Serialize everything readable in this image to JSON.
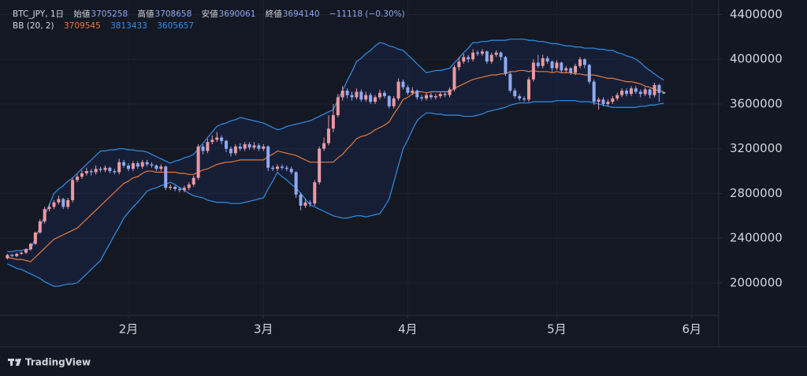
{
  "chart_data": {
    "type": "candlestick",
    "symbol_text": "BTC_JPY, 1日",
    "open_label": "始値",
    "high_label": "高値",
    "low_label": "安値",
    "close_label": "終値",
    "change_text": "−11118 (−0.30%)",
    "indicator": "BB (20, 2)",
    "footer": "TradingView",
    "up_color": "#eb9aa0",
    "down_color": "#8faaf2",
    "open": [
      2220000,
      2250000,
      2240000,
      2260000,
      2270000,
      2300000,
      2350000,
      2450000,
      2550000,
      2660000,
      2680000,
      2720000,
      2750000,
      2680000,
      2740000,
      2920000,
      2950000,
      2980000,
      3000000,
      2990000,
      3020000,
      3010000,
      3030000,
      3000000,
      2990000,
      3080000,
      3050000,
      3020000,
      3070000,
      3040000,
      3080000,
      3060000,
      3050000,
      3020000,
      3040000,
      2850000,
      2860000,
      2840000,
      2830000,
      2850000,
      2880000,
      2940000,
      3220000,
      3180000,
      3260000,
      3280000,
      3300000,
      3270000,
      3200000,
      3160000,
      3220000,
      3200000,
      3240000,
      3210000,
      3230000,
      3200000,
      3220000,
      3030000,
      3020000,
      3040000,
      3030000,
      3020000,
      2990000,
      2790000,
      2690000,
      2720000,
      2710000,
      2900000,
      3200000,
      3250000,
      3380000,
      3500000,
      3660000,
      3720000,
      3680000,
      3660000,
      3710000,
      3640000,
      3680000,
      3620000,
      3660000,
      3700000,
      3670000,
      3580000,
      3650000,
      3800000,
      3750000,
      3700000,
      3720000,
      3660000,
      3650000,
      3680000,
      3660000,
      3670000,
      3690000,
      3680000,
      3730000,
      3930000,
      3980000,
      4020000,
      4000000,
      4060000,
      4050000,
      4070000,
      3980000,
      4040000,
      4060000,
      4020000,
      3870000,
      3720000,
      3670000,
      3650000,
      3640000,
      3820000,
      3970000,
      3940000,
      4010000,
      3980000,
      3920000,
      3970000,
      3900000,
      3920000,
      3880000,
      3940000,
      4000000,
      3950000,
      3800000,
      3620000,
      3640000,
      3600000,
      3620000,
      3650000,
      3680000,
      3720000,
      3690000,
      3740000,
      3710000,
      3690000,
      3730000,
      3680000,
      3770000,
      3705258
    ],
    "high": [
      2260000,
      2260000,
      2270000,
      2280000,
      2310000,
      2360000,
      2460000,
      2570000,
      2680000,
      2710000,
      2740000,
      2780000,
      2760000,
      2760000,
      2940000,
      2970000,
      3010000,
      3030000,
      3020000,
      3050000,
      3040000,
      3050000,
      3040000,
      3020000,
      3110000,
      3100000,
      3070000,
      3090000,
      3090000,
      3100000,
      3100000,
      3080000,
      3060000,
      3060000,
      3050000,
      2880000,
      2870000,
      2860000,
      2870000,
      2900000,
      2960000,
      3240000,
      3240000,
      3290000,
      3320000,
      3350000,
      3320000,
      3280000,
      3220000,
      3240000,
      3250000,
      3260000,
      3260000,
      3260000,
      3250000,
      3240000,
      3230000,
      3050000,
      3060000,
      3060000,
      3050000,
      3040000,
      3000000,
      2810000,
      2750000,
      2740000,
      2920000,
      3220000,
      3300000,
      3500000,
      3600000,
      3690000,
      3760000,
      3740000,
      3710000,
      3740000,
      3730000,
      3710000,
      3700000,
      3680000,
      3730000,
      3720000,
      3680000,
      3670000,
      3830000,
      3820000,
      3770000,
      3750000,
      3730000,
      3680000,
      3700000,
      3700000,
      3690000,
      3710000,
      3710000,
      3750000,
      3950000,
      4020000,
      4050000,
      4040000,
      4090000,
      4080000,
      4090000,
      4080000,
      4060000,
      4080000,
      4070000,
      4030000,
      3890000,
      3740000,
      3690000,
      3670000,
      3840000,
      4000000,
      4040000,
      4040000,
      4030000,
      3990000,
      3990000,
      3980000,
      3940000,
      3930000,
      3960000,
      4020000,
      4010000,
      3960000,
      3820000,
      3660000,
      3660000,
      3640000,
      3670000,
      3700000,
      3740000,
      3740000,
      3760000,
      3760000,
      3730000,
      3750000,
      3740000,
      3790000,
      3780000,
      3708658
    ],
    "low": [
      2210000,
      2230000,
      2230000,
      2250000,
      2260000,
      2290000,
      2340000,
      2440000,
      2530000,
      2640000,
      2660000,
      2700000,
      2660000,
      2660000,
      2720000,
      2900000,
      2930000,
      2960000,
      2960000,
      2970000,
      2990000,
      2990000,
      2980000,
      2970000,
      2970000,
      3030000,
      3000000,
      3000000,
      3020000,
      3020000,
      3040000,
      3030000,
      3000000,
      3000000,
      2830000,
      2830000,
      2820000,
      2810000,
      2810000,
      2830000,
      2860000,
      2920000,
      3150000,
      3160000,
      3240000,
      3260000,
      3240000,
      3170000,
      3130000,
      3140000,
      3180000,
      3180000,
      3190000,
      3190000,
      3180000,
      3180000,
      3000000,
      3000000,
      3000000,
      3010000,
      3000000,
      2970000,
      2760000,
      2650000,
      2670000,
      2680000,
      2690000,
      2880000,
      3180000,
      3230000,
      3350000,
      3480000,
      3630000,
      3650000,
      3630000,
      3640000,
      3620000,
      3620000,
      3600000,
      3600000,
      3640000,
      3650000,
      3560000,
      3560000,
      3630000,
      3730000,
      3680000,
      3680000,
      3640000,
      3630000,
      3630000,
      3640000,
      3640000,
      3650000,
      3660000,
      3660000,
      3710000,
      3900000,
      3960000,
      3970000,
      3980000,
      4030000,
      4030000,
      3960000,
      3960000,
      4020000,
      3990000,
      3850000,
      3700000,
      3650000,
      3630000,
      3620000,
      3620000,
      3800000,
      3920000,
      3920000,
      3960000,
      3890000,
      3900000,
      3880000,
      3880000,
      3860000,
      3860000,
      3920000,
      3920000,
      3780000,
      3590000,
      3550000,
      3580000,
      3580000,
      3600000,
      3630000,
      3660000,
      3670000,
      3670000,
      3690000,
      3660000,
      3670000,
      3650000,
      3660000,
      3620000,
      3690061
    ],
    "close": [
      2250000,
      2240000,
      2260000,
      2270000,
      2300000,
      2350000,
      2450000,
      2550000,
      2660000,
      2680000,
      2720000,
      2750000,
      2680000,
      2740000,
      2920000,
      2950000,
      2980000,
      3000000,
      2990000,
      3020000,
      3010000,
      3030000,
      3000000,
      2990000,
      3080000,
      3050000,
      3020000,
      3070000,
      3040000,
      3080000,
      3060000,
      3050000,
      3020000,
      3040000,
      2850000,
      2860000,
      2840000,
      2830000,
      2850000,
      2880000,
      2940000,
      3220000,
      3180000,
      3260000,
      3280000,
      3300000,
      3270000,
      3200000,
      3160000,
      3220000,
      3200000,
      3240000,
      3210000,
      3230000,
      3200000,
      3220000,
      3030000,
      3020000,
      3040000,
      3030000,
      3020000,
      2990000,
      2790000,
      2690000,
      2720000,
      2710000,
      2900000,
      3200000,
      3250000,
      3380000,
      3500000,
      3660000,
      3720000,
      3680000,
      3660000,
      3710000,
      3640000,
      3680000,
      3620000,
      3660000,
      3700000,
      3670000,
      3580000,
      3650000,
      3800000,
      3750000,
      3700000,
      3720000,
      3660000,
      3650000,
      3680000,
      3660000,
      3670000,
      3690000,
      3680000,
      3730000,
      3930000,
      3980000,
      4020000,
      4000000,
      4060000,
      4050000,
      4070000,
      3980000,
      4040000,
      4060000,
      4020000,
      3870000,
      3720000,
      3670000,
      3650000,
      3640000,
      3820000,
      3970000,
      3940000,
      4010000,
      3980000,
      3920000,
      3970000,
      3900000,
      3920000,
      3880000,
      3940000,
      4000000,
      3950000,
      3800000,
      3620000,
      3640000,
      3600000,
      3620000,
      3650000,
      3680000,
      3720000,
      3690000,
      3740000,
      3710000,
      3690000,
      3730000,
      3680000,
      3770000,
      3700000,
      3694140
    ],
    "bands": {
      "middle": {
        "color": "#e57a3a",
        "values": [
          2230000,
          2220000,
          2210000,
          2210000,
          2200000,
          2190000,
          2230000,
          2270000,
          2310000,
          2350000,
          2390000,
          2410000,
          2430000,
          2450000,
          2470000,
          2490000,
          2530000,
          2570000,
          2610000,
          2650000,
          2690000,
          2730000,
          2770000,
          2810000,
          2850000,
          2890000,
          2910000,
          2940000,
          2950000,
          2980000,
          3000000,
          3000000,
          2990000,
          2990000,
          2990000,
          2990000,
          2990000,
          2980000,
          2980000,
          2970000,
          2970000,
          2990000,
          3010000,
          3020000,
          3040000,
          3060000,
          3070000,
          3080000,
          3080000,
          3090000,
          3100000,
          3100000,
          3100000,
          3100000,
          3100000,
          3100000,
          3130000,
          3150000,
          3180000,
          3170000,
          3160000,
          3150000,
          3140000,
          3120000,
          3100000,
          3080000,
          3080000,
          3080000,
          3080000,
          3080000,
          3080000,
          3120000,
          3150000,
          3200000,
          3240000,
          3290000,
          3310000,
          3320000,
          3340000,
          3370000,
          3390000,
          3410000,
          3440000,
          3510000,
          3570000,
          3640000,
          3660000,
          3690000,
          3710000,
          3710000,
          3700000,
          3710000,
          3710000,
          3710000,
          3710000,
          3710000,
          3740000,
          3760000,
          3780000,
          3800000,
          3820000,
          3830000,
          3840000,
          3850000,
          3860000,
          3860000,
          3870000,
          3870000,
          3890000,
          3890000,
          3900000,
          3900000,
          3890000,
          3900000,
          3890000,
          3890000,
          3890000,
          3880000,
          3890000,
          3880000,
          3880000,
          3880000,
          3870000,
          3870000,
          3860000,
          3860000,
          3860000,
          3850000,
          3840000,
          3830000,
          3830000,
          3820000,
          3810000,
          3800000,
          3800000,
          3790000,
          3780000,
          3760000,
          3750000,
          3730000,
          3720000,
          3709545
        ]
      },
      "upper": {
        "color": "#2f8fe6",
        "values": [
          2280000,
          2280000,
          2290000,
          2290000,
          2300000,
          2300000,
          2400000,
          2500000,
          2600000,
          2700000,
          2800000,
          2840000,
          2870000,
          2910000,
          2940000,
          2980000,
          3020000,
          3060000,
          3100000,
          3140000,
          3180000,
          3180000,
          3190000,
          3190000,
          3200000,
          3200000,
          3190000,
          3190000,
          3180000,
          3180000,
          3170000,
          3150000,
          3130000,
          3110000,
          3090000,
          3070000,
          3090000,
          3100000,
          3120000,
          3130000,
          3150000,
          3200000,
          3250000,
          3300000,
          3350000,
          3400000,
          3420000,
          3430000,
          3450000,
          3460000,
          3480000,
          3470000,
          3460000,
          3450000,
          3440000,
          3430000,
          3410000,
          3390000,
          3370000,
          3380000,
          3400000,
          3410000,
          3420000,
          3430000,
          3440000,
          3450000,
          3470000,
          3490000,
          3510000,
          3530000,
          3550000,
          3640000,
          3720000,
          3810000,
          3890000,
          3980000,
          4010000,
          4050000,
          4080000,
          4120000,
          4150000,
          4140000,
          4120000,
          4110000,
          4090000,
          4080000,
          4040000,
          4000000,
          3960000,
          3920000,
          3880000,
          3890000,
          3900000,
          3900000,
          3910000,
          3920000,
          3970000,
          4010000,
          4060000,
          4100000,
          4150000,
          4150000,
          4160000,
          4160000,
          4170000,
          4170000,
          4170000,
          4170000,
          4180000,
          4180000,
          4180000,
          4180000,
          4170000,
          4170000,
          4160000,
          4160000,
          4150000,
          4140000,
          4140000,
          4130000,
          4120000,
          4120000,
          4110000,
          4110000,
          4100000,
          4100000,
          4100000,
          4090000,
          4090000,
          4080000,
          4080000,
          4060000,
          4050000,
          4030000,
          4020000,
          4000000,
          3970000,
          3930000,
          3900000,
          3870000,
          3840000,
          3813433
        ]
      },
      "lower": {
        "color": "#2f8fe6",
        "values": [
          2170000,
          2150000,
          2130000,
          2120000,
          2100000,
          2080000,
          2060000,
          2040000,
          2010000,
          1990000,
          1970000,
          1970000,
          1980000,
          1990000,
          1990000,
          2000000,
          2040000,
          2080000,
          2120000,
          2160000,
          2200000,
          2280000,
          2350000,
          2430000,
          2500000,
          2580000,
          2630000,
          2680000,
          2720000,
          2770000,
          2820000,
          2840000,
          2850000,
          2870000,
          2880000,
          2900000,
          2880000,
          2850000,
          2830000,
          2800000,
          2780000,
          2770000,
          2760000,
          2740000,
          2730000,
          2720000,
          2720000,
          2720000,
          2710000,
          2710000,
          2710000,
          2720000,
          2730000,
          2740000,
          2750000,
          2760000,
          2840000,
          2910000,
          2990000,
          2950000,
          2920000,
          2880000,
          2850000,
          2800000,
          2750000,
          2700000,
          2680000,
          2660000,
          2640000,
          2620000,
          2600000,
          2590000,
          2580000,
          2580000,
          2590000,
          2600000,
          2600000,
          2590000,
          2600000,
          2610000,
          2620000,
          2680000,
          2750000,
          2900000,
          3050000,
          3200000,
          3280000,
          3370000,
          3450000,
          3490000,
          3520000,
          3520000,
          3510000,
          3510000,
          3500000,
          3500000,
          3500000,
          3500000,
          3490000,
          3490000,
          3490000,
          3500000,
          3510000,
          3530000,
          3540000,
          3550000,
          3560000,
          3570000,
          3590000,
          3600000,
          3610000,
          3610000,
          3610000,
          3620000,
          3620000,
          3620000,
          3620000,
          3620000,
          3630000,
          3630000,
          3630000,
          3630000,
          3630000,
          3620000,
          3620000,
          3620000,
          3610000,
          3600000,
          3590000,
          3580000,
          3570000,
          3570000,
          3570000,
          3570000,
          3570000,
          3570000,
          3580000,
          3580000,
          3590000,
          3590000,
          3600000,
          3605657
        ]
      }
    },
    "xlim": [
      0.1,
      152.8
    ],
    "xticks": [
      {
        "value": 26,
        "label": "2月"
      },
      {
        "value": 55,
        "label": "3月"
      },
      {
        "value": 86,
        "label": "4月"
      },
      {
        "value": 118,
        "label": "5月"
      },
      {
        "value": 147,
        "label": "6月"
      }
    ],
    "ylim": [
      1710000,
      4460000
    ],
    "yticks": [
      2000000,
      2400000,
      2800000,
      3200000,
      3600000,
      4000000,
      4400000
    ],
    "grid": true
  }
}
